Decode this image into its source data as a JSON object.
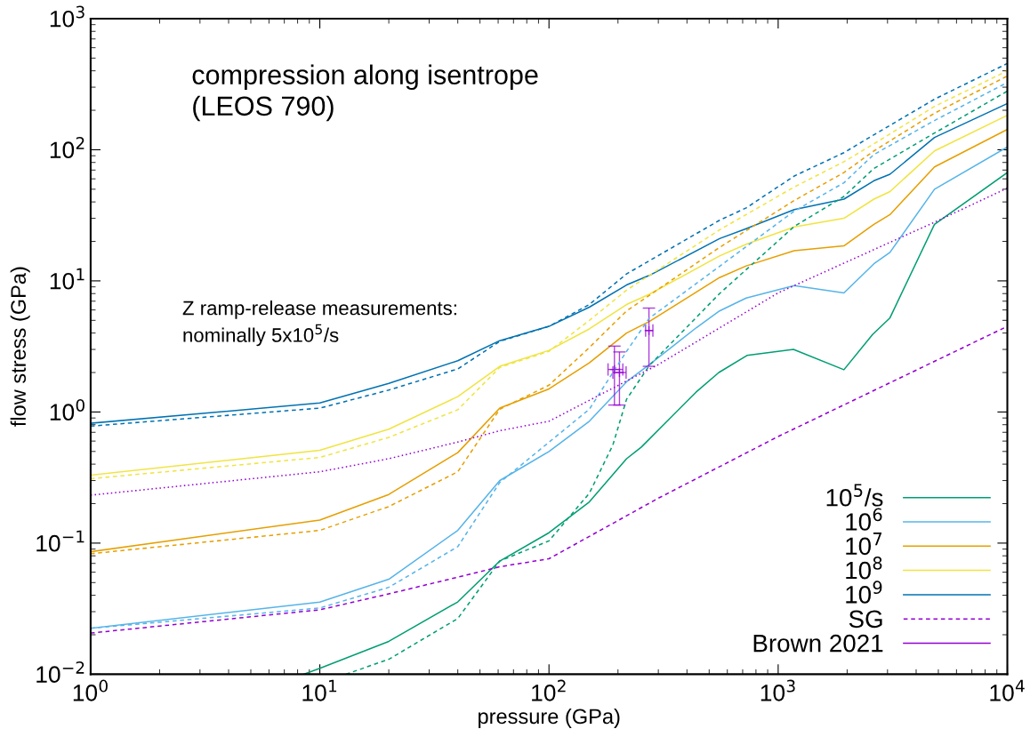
{
  "chart_data": {
    "type": "line",
    "xlabel": "pressure (GPa)",
    "ylabel": "flow stress (GPa)",
    "annotations": [
      "compression along isentrope\n(LEOS 790)",
      "Z ramp-release measurements:\nnominally 5x10$^{5}$/s"
    ],
    "log": "xy",
    "legend": "bottom right",
    "xlim": [
      1,
      10000
    ],
    "xticks": [
      {
        "value": 1,
        "label": "10$^{0}$"
      },
      {
        "value": 10,
        "label": "10$^{1}$"
      },
      {
        "value": 100,
        "label": "10$^{2}$"
      },
      {
        "value": 1000,
        "label": "10$^{3}$"
      },
      {
        "value": 10000,
        "label": "10$^{4}$"
      }
    ],
    "ylim": [
      0.01,
      1000
    ],
    "yticks": [
      {
        "value": 0.01,
        "label": "10$^{−2}$"
      },
      {
        "value": 0.1,
        "label": "10$^{−1}$"
      },
      {
        "value": 1,
        "label": "10$^{0}$"
      },
      {
        "value": 10,
        "label": "10$^{1}$"
      },
      {
        "value": 100,
        "label": "10$^{2}$"
      },
      {
        "value": 1000,
        "label": "10$^{3}$"
      }
    ],
    "series": [
      {
        "name": "10$^{5}$/s",
        "line_style": "solid",
        "color": "#009e73",
        "x": [
          8.5,
          10,
          20,
          40,
          61,
          100,
          150,
          218,
          253,
          439,
          551,
          731,
          1166,
          1936,
          2582,
          3070,
          4810,
          10000
        ],
        "values": [
          0.01,
          0.0111,
          0.0178,
          0.0356,
          0.073,
          0.12,
          0.206,
          0.44,
          0.54,
          1.42,
          2.0,
          2.7,
          3.0,
          2.1,
          3.9,
          5.2,
          27,
          67
        ]
      },
      {
        "name": "10$^{6}$",
        "line_style": "solid",
        "color": "#56b4e9",
        "x": [
          1,
          10,
          20,
          40,
          61,
          100,
          150,
          218,
          274,
          440,
          555,
          725,
          1175,
          1936,
          2617,
          3075,
          4810,
          10000
        ],
        "values": [
          0.0224,
          0.0355,
          0.053,
          0.125,
          0.3,
          0.5,
          0.85,
          1.7,
          2.3,
          4.4,
          5.9,
          7.4,
          9.2,
          8.1,
          13.5,
          16.5,
          50,
          105
        ]
      },
      {
        "name": "10$^{7}$",
        "line_style": "solid",
        "color": "#e69f00",
        "x": [
          1,
          10,
          20,
          40,
          61,
          100,
          150,
          218,
          274,
          555,
          725,
          1175,
          1936,
          2617,
          3075,
          4810,
          10000
        ],
        "values": [
          0.086,
          0.15,
          0.235,
          0.49,
          1.07,
          1.5,
          2.37,
          4.0,
          4.9,
          10.6,
          13,
          17,
          18.5,
          27,
          32,
          74,
          143
        ]
      },
      {
        "name": "10$^{8}$",
        "line_style": "solid",
        "color": "#f0e442",
        "x": [
          1,
          10,
          20,
          40,
          61,
          100,
          150,
          218,
          274,
          555,
          725,
          1175,
          1936,
          2617,
          3075,
          4810,
          10000
        ],
        "values": [
          0.33,
          0.51,
          0.74,
          1.31,
          2.23,
          2.95,
          4.3,
          6.6,
          7.9,
          15.5,
          19,
          25.8,
          30,
          42,
          48,
          98,
          183
        ]
      },
      {
        "name": "10$^{9}$",
        "line_style": "solid",
        "color": "#0072b2",
        "x": [
          1,
          10,
          20,
          40,
          61,
          100,
          150,
          218,
          274,
          555,
          725,
          1175,
          1936,
          2617,
          3075,
          4810,
          10000
        ],
        "values": [
          0.82,
          1.17,
          1.65,
          2.46,
          3.5,
          4.5,
          6.3,
          9.3,
          11,
          21,
          25,
          35,
          42,
          58,
          65,
          124,
          225
        ]
      },
      {
        "name": "SG",
        "line_style": "dashed",
        "color": "#9400d3",
        "x": [
          1,
          10,
          20,
          40,
          61,
          100,
          300,
          1000,
          10000
        ],
        "values": [
          0.0206,
          0.031,
          0.041,
          0.055,
          0.066,
          0.076,
          0.22,
          0.65,
          4.5
        ]
      },
      {
        "name": "Brown 2021",
        "type": "scatter",
        "marker": "cross",
        "color": "#9400d3",
        "x": [
          193,
          203,
          273
        ],
        "values": [
          2.11,
          2.0,
          4.18
        ],
        "errors": [
          [
            1.13,
            3.18
          ],
          [
            1.13,
            2.87
          ],
          [
            2.23,
            6.2
          ]
        ],
        "xerrors": [
          [
            181,
            210
          ],
          [
            190,
            217
          ],
          [
            264,
            284
          ]
        ]
      },
      {
        "type": "line",
        "line_style": "dashed",
        "color": "#009e73",
        "x": [
          13,
          20,
          40,
          61,
          100,
          150,
          190,
          218,
          274,
          555,
          1175,
          1936,
          2617,
          4810,
          10000
        ],
        "values": [
          0.01,
          0.013,
          0.0266,
          0.073,
          0.104,
          0.24,
          0.56,
          1.25,
          2.26,
          8.0,
          26,
          44,
          72,
          134,
          280
        ]
      },
      {
        "type": "line",
        "line_style": "dashed",
        "color": "#56b4e9",
        "x": [
          1,
          10,
          20,
          40,
          61,
          150,
          218,
          274,
          555,
          1175,
          1936,
          2617,
          4810,
          10000
        ],
        "values": [
          0.0224,
          0.032,
          0.046,
          0.094,
          0.29,
          1.05,
          2.9,
          5.2,
          12.9,
          34,
          56,
          92,
          167,
          326
        ]
      },
      {
        "type": "line",
        "line_style": "dashed",
        "color": "#e69f00",
        "x": [
          1,
          10,
          20,
          40,
          61,
          100,
          150,
          218,
          555,
          1175,
          1936,
          2617,
          4810,
          10000
        ],
        "values": [
          0.083,
          0.125,
          0.19,
          0.35,
          1.05,
          1.6,
          3.1,
          5.9,
          18,
          41,
          67,
          98,
          190,
          365
        ]
      },
      {
        "type": "line",
        "line_style": "dashed",
        "color": "#f0e442",
        "x": [
          1,
          10,
          20,
          40,
          61,
          100,
          150,
          218,
          555,
          1175,
          1936,
          2617,
          4810,
          10000
        ],
        "values": [
          0.31,
          0.45,
          0.64,
          1.04,
          2.19,
          2.9,
          5.0,
          8.5,
          24.5,
          52,
          81,
          111,
          214,
          400
        ]
      },
      {
        "type": "line",
        "line_style": "dashed",
        "color": "#0072b2",
        "x": [
          1,
          10,
          20,
          40,
          61,
          100,
          150,
          218,
          555,
          725,
          1175,
          1936,
          2617,
          4810,
          10000
        ],
        "values": [
          0.78,
          1.07,
          1.47,
          2.13,
          3.46,
          4.5,
          6.6,
          11.3,
          29,
          36,
          63,
          95,
          130,
          243,
          455
        ]
      },
      {
        "type": "line",
        "line_style": "dotted",
        "color": "#9400d3",
        "x": [
          1,
          10,
          20,
          40,
          61,
          100,
          300,
          1000,
          4810,
          10000
        ],
        "values": [
          0.232,
          0.35,
          0.44,
          0.59,
          0.72,
          0.85,
          2.3,
          8.1,
          28,
          51
        ]
      }
    ]
  }
}
